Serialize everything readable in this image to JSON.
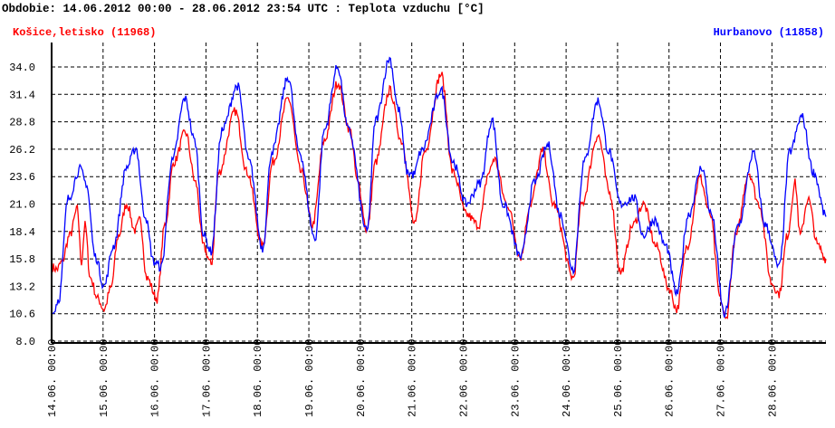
{
  "chart_data": {
    "type": "line",
    "title": "Obdobie: 14.06.2012 00:00 - 28.06.2012 23:54 UTC : Teplota vzduchu [°C]",
    "xlabel": "",
    "ylabel": "",
    "ylim": [
      8.0,
      34.0
    ],
    "yticks": [
      "34.0",
      "31.4",
      "28.8",
      "26.2",
      "23.6",
      "21.0",
      "18.4",
      "15.8",
      "13.2",
      "10.6",
      "8.0"
    ],
    "xlim_days": [
      0,
      15.05
    ],
    "xticks": [
      "14.06. 00:00",
      "15.06. 00:00",
      "16.06. 00:00",
      "17.06. 00:00",
      "18.06. 00:00",
      "19.06. 00:00",
      "20.06. 00:00",
      "21.06. 00:00",
      "22.06. 00:00",
      "23.06. 00:00",
      "24.06. 00:00",
      "25.06. 00:00",
      "26.06. 00:00",
      "27.06. 00:00",
      "28.06. 00:00"
    ],
    "grid": true,
    "series": [
      {
        "name": "Košice,letisko (11968)",
        "color": "#ff0000",
        "legend": "top-left",
        "points": [
          [
            0.02,
            15
          ],
          [
            0.1,
            14.8
          ],
          [
            0.2,
            15.5
          ],
          [
            0.35,
            18
          ],
          [
            0.5,
            20.5
          ],
          [
            0.58,
            15.5
          ],
          [
            0.65,
            19
          ],
          [
            0.75,
            14
          ],
          [
            0.9,
            12
          ],
          [
            1.02,
            11
          ],
          [
            1.15,
            13
          ],
          [
            1.3,
            18
          ],
          [
            1.46,
            21
          ],
          [
            1.62,
            18.5
          ],
          [
            1.72,
            19.5
          ],
          [
            1.85,
            14
          ],
          [
            2.05,
            12
          ],
          [
            2.2,
            19
          ],
          [
            2.38,
            25
          ],
          [
            2.6,
            27.8
          ],
          [
            2.8,
            23
          ],
          [
            2.95,
            17
          ],
          [
            3.1,
            15.3
          ],
          [
            3.25,
            24
          ],
          [
            3.57,
            29.8
          ],
          [
            3.8,
            24
          ],
          [
            4.1,
            17
          ],
          [
            4.3,
            25
          ],
          [
            4.6,
            31
          ],
          [
            4.85,
            24
          ],
          [
            5.07,
            19
          ],
          [
            5.3,
            27
          ],
          [
            5.56,
            32.5
          ],
          [
            5.8,
            28
          ],
          [
            5.95,
            23
          ],
          [
            6.13,
            18.5
          ],
          [
            6.3,
            25
          ],
          [
            6.57,
            31.8
          ],
          [
            6.8,
            27
          ],
          [
            7.06,
            19
          ],
          [
            7.25,
            26
          ],
          [
            7.57,
            33.3
          ],
          [
            7.8,
            24
          ],
          [
            8.06,
            20
          ],
          [
            8.3,
            19
          ],
          [
            8.5,
            24
          ],
          [
            8.6,
            25.3
          ],
          [
            8.85,
            21
          ],
          [
            9.12,
            16
          ],
          [
            9.3,
            21
          ],
          [
            9.55,
            26
          ],
          [
            9.75,
            21
          ],
          [
            10.14,
            14
          ],
          [
            10.3,
            21
          ],
          [
            10.62,
            27.5
          ],
          [
            10.85,
            22
          ],
          [
            11.06,
            14.5
          ],
          [
            11.3,
            19
          ],
          [
            11.5,
            21
          ],
          [
            11.75,
            17
          ],
          [
            12.0,
            13
          ],
          [
            12.15,
            11
          ],
          [
            12.35,
            17
          ],
          [
            12.6,
            23.5
          ],
          [
            12.8,
            20
          ],
          [
            13.0,
            12
          ],
          [
            13.1,
            10
          ],
          [
            13.3,
            18
          ],
          [
            13.55,
            24
          ],
          [
            13.75,
            21
          ],
          [
            14.0,
            13.5
          ],
          [
            14.14,
            12.5
          ],
          [
            14.3,
            18
          ],
          [
            14.45,
            23
          ],
          [
            14.55,
            18
          ],
          [
            14.7,
            21.5
          ],
          [
            14.9,
            17
          ],
          [
            15.05,
            15.8
          ]
        ]
      },
      {
        "name": "Hurbanovo (11858)",
        "color": "#0000ff",
        "legend": "top-right",
        "points": [
          [
            0.02,
            10.6
          ],
          [
            0.14,
            12
          ],
          [
            0.32,
            21.5
          ],
          [
            0.55,
            24.3
          ],
          [
            0.67,
            23
          ],
          [
            0.85,
            16
          ],
          [
            1.02,
            13.2
          ],
          [
            1.2,
            17
          ],
          [
            1.46,
            24.5
          ],
          [
            1.64,
            26.3
          ],
          [
            1.81,
            20
          ],
          [
            1.99,
            15.5
          ],
          [
            2.13,
            15
          ],
          [
            2.34,
            25
          ],
          [
            2.59,
            31
          ],
          [
            2.78,
            27
          ],
          [
            2.96,
            18
          ],
          [
            3.1,
            16.5
          ],
          [
            3.31,
            28
          ],
          [
            3.61,
            32.2
          ],
          [
            3.84,
            25
          ],
          [
            4.1,
            16.8
          ],
          [
            4.28,
            26
          ],
          [
            4.6,
            33
          ],
          [
            4.81,
            26
          ],
          [
            5.12,
            17.7
          ],
          [
            5.3,
            28
          ],
          [
            5.56,
            34
          ],
          [
            5.77,
            28
          ],
          [
            6.13,
            18.4
          ],
          [
            6.3,
            29
          ],
          [
            6.57,
            34.8
          ],
          [
            6.74,
            30
          ],
          [
            6.92,
            24
          ],
          [
            7.04,
            23.8
          ],
          [
            7.18,
            26
          ],
          [
            7.57,
            31.8
          ],
          [
            7.8,
            25
          ],
          [
            8.06,
            21
          ],
          [
            8.33,
            23
          ],
          [
            8.56,
            29
          ],
          [
            8.77,
            21
          ],
          [
            9.12,
            16
          ],
          [
            9.38,
            23
          ],
          [
            9.65,
            26.6
          ],
          [
            9.88,
            20
          ],
          [
            10.14,
            14.8
          ],
          [
            10.35,
            25
          ],
          [
            10.62,
            30.8
          ],
          [
            10.83,
            26
          ],
          [
            11.06,
            21
          ],
          [
            11.32,
            21.6
          ],
          [
            11.5,
            18
          ],
          [
            11.71,
            19.5
          ],
          [
            11.94,
            17
          ],
          [
            12.15,
            12.5
          ],
          [
            12.38,
            20
          ],
          [
            12.64,
            24.5
          ],
          [
            12.82,
            20
          ],
          [
            13.08,
            10.5
          ],
          [
            13.35,
            19
          ],
          [
            13.64,
            25.8
          ],
          [
            13.87,
            19
          ],
          [
            14.14,
            15
          ],
          [
            14.35,
            26
          ],
          [
            14.58,
            29.3
          ],
          [
            14.81,
            24
          ],
          [
            15.05,
            19.8
          ]
        ]
      }
    ]
  }
}
